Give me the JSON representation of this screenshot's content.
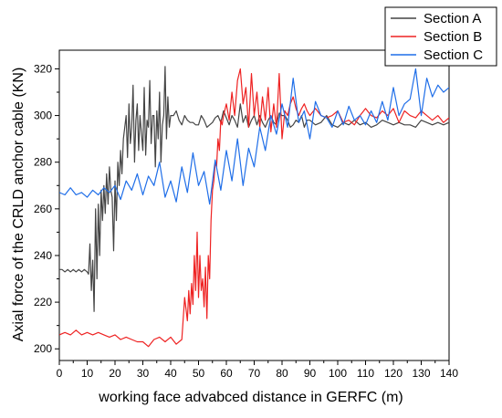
{
  "chart_data": {
    "type": "line",
    "title": "",
    "xlabel": "working face advabced distance in GERFC (m)",
    "ylabel": "Axial force of the CRLD anchor cable (KN)",
    "xlim": [
      0,
      140
    ],
    "ylim": [
      195,
      328
    ],
    "xticks": [
      0,
      10,
      20,
      30,
      40,
      50,
      60,
      70,
      80,
      90,
      100,
      110,
      120,
      130,
      140
    ],
    "yticks": [
      200,
      220,
      240,
      260,
      280,
      300,
      320
    ],
    "grid": false,
    "legend_position": "top-right",
    "series": [
      {
        "name": "Section A",
        "color": "#444444",
        "x": [
          0,
          1,
          2,
          3,
          4,
          5,
          6,
          7,
          8,
          9,
          10,
          10.5,
          11,
          11.5,
          12,
          12.5,
          13,
          13.5,
          14,
          14.5,
          15,
          15.5,
          16,
          16.5,
          17,
          17.5,
          18,
          18.5,
          19,
          19.5,
          20,
          20.5,
          21,
          21.5,
          22,
          22.5,
          23,
          23.5,
          24,
          24.5,
          25,
          25.5,
          26,
          26.5,
          27,
          27.5,
          28,
          28.5,
          29,
          29.5,
          30,
          30.5,
          31,
          31.5,
          32,
          32.5,
          33,
          33.5,
          34,
          34.5,
          35,
          35.5,
          36,
          36.5,
          37,
          37.5,
          38,
          38.5,
          39,
          39.5,
          40,
          41,
          42,
          43,
          44,
          45,
          46,
          47,
          48,
          49,
          50,
          51,
          52,
          53,
          54,
          55,
          56,
          57,
          58,
          59,
          60,
          61,
          62,
          63,
          64,
          65,
          66,
          67,
          68,
          69,
          70,
          71,
          72,
          73,
          74,
          75,
          76,
          77,
          78,
          79,
          80,
          81,
          82,
          83,
          84,
          85,
          86,
          87,
          88,
          89,
          90,
          92,
          94,
          96,
          98,
          100,
          102,
          104,
          106,
          108,
          110,
          112,
          114,
          116,
          118,
          120,
          122,
          124,
          126,
          128,
          130,
          132,
          134,
          136,
          138,
          140
        ],
        "y": [
          234,
          234,
          233,
          234,
          233,
          234,
          233,
          234,
          233,
          234,
          233,
          232,
          245,
          225,
          238,
          216,
          260,
          230,
          262,
          240,
          268,
          255,
          270,
          258,
          275,
          262,
          278,
          268,
          265,
          242,
          272,
          255,
          280,
          270,
          285,
          275,
          290,
          295,
          300,
          282,
          305,
          288,
          295,
          313,
          280,
          298,
          305,
          285,
          300,
          292,
          285,
          312,
          283,
          298,
          295,
          315,
          288,
          300,
          300,
          278,
          302,
          290,
          310,
          280,
          296,
          300,
          321,
          290,
          308,
          295,
          300,
          300,
          302,
          298,
          296,
          300,
          298,
          297,
          297,
          296,
          296,
          300,
          298,
          295,
          296,
          297,
          299,
          300,
          297,
          302,
          299,
          296,
          300,
          298,
          295,
          305,
          297,
          300,
          295,
          298,
          300,
          296,
          300,
          297,
          295,
          298,
          300,
          297,
          296,
          301,
          300,
          300,
          298,
          295,
          296,
          298,
          297,
          300,
          295,
          298,
          298,
          296,
          297,
          300,
          296,
          295,
          297,
          296,
          298,
          296,
          297,
          295,
          296,
          298,
          297,
          296,
          297,
          296,
          296,
          295,
          298,
          297,
          296,
          297,
          296,
          297
        ]
      },
      {
        "name": "Section B",
        "color": "#ee2222",
        "x": [
          0,
          2,
          4,
          6,
          8,
          10,
          12,
          14,
          16,
          18,
          20,
          22,
          24,
          26,
          28,
          30,
          32,
          34,
          36,
          38,
          40,
          42,
          44,
          45,
          46,
          46.5,
          47,
          47.5,
          48,
          48.5,
          49,
          49.5,
          50,
          50.5,
          51,
          51.5,
          52,
          52.5,
          53,
          53.5,
          54,
          54.5,
          55,
          55.5,
          56,
          56.5,
          57,
          57.5,
          58,
          58.5,
          59,
          60,
          61,
          62,
          63,
          64,
          65,
          66,
          67,
          68,
          69,
          70,
          71,
          72,
          73,
          74,
          75,
          76,
          77,
          78,
          79,
          80,
          81,
          82,
          83,
          84,
          85,
          86,
          87,
          88,
          89,
          90,
          92,
          94,
          96,
          98,
          100,
          102,
          104,
          106,
          108,
          110,
          112,
          114,
          116,
          118,
          120,
          122,
          124,
          126,
          128,
          130,
          132,
          134,
          136,
          138,
          140
        ],
        "y": [
          206,
          207,
          206,
          208,
          206,
          207,
          206,
          207,
          206,
          205,
          206,
          204,
          205,
          204,
          203,
          203,
          201,
          204,
          205,
          203,
          205,
          202,
          204,
          222,
          212,
          225,
          215,
          228,
          219,
          240,
          225,
          250,
          222,
          240,
          225,
          230,
          218,
          235,
          213,
          240,
          230,
          255,
          268,
          272,
          280,
          278,
          290,
          285,
          298,
          296,
          300,
          305,
          298,
          310,
          300,
          315,
          320,
          305,
          312,
          295,
          318,
          300,
          310,
          295,
          308,
          298,
          312,
          293,
          305,
          295,
          318,
          290,
          302,
          300,
          305,
          308,
          303,
          300,
          303,
          305,
          302,
          300,
          303,
          300,
          299,
          300,
          302,
          297,
          298,
          296,
          300,
          303,
          300,
          299,
          302,
          300,
          303,
          297,
          302,
          300,
          299,
          302,
          300,
          298,
          300,
          297,
          299
        ]
      },
      {
        "name": "Section C",
        "color": "#1f6ee8",
        "x": [
          0,
          2,
          4,
          6,
          8,
          10,
          12,
          14,
          16,
          18,
          20,
          22,
          24,
          26,
          28,
          30,
          32,
          34,
          36,
          38,
          40,
          42,
          44,
          46,
          48,
          50,
          52,
          54,
          56,
          58,
          60,
          62,
          64,
          66,
          68,
          70,
          72,
          74,
          76,
          78,
          80,
          82,
          84,
          86,
          88,
          90,
          92,
          94,
          96,
          98,
          100,
          102,
          104,
          106,
          108,
          110,
          112,
          114,
          116,
          118,
          120,
          122,
          124,
          126,
          128,
          130,
          132,
          134,
          136,
          138,
          140
        ],
        "y": [
          267,
          266,
          269,
          266,
          267,
          265,
          268,
          266,
          269,
          267,
          270,
          264,
          272,
          268,
          275,
          266,
          274,
          270,
          280,
          265,
          272,
          263,
          278,
          267,
          284,
          270,
          276,
          262,
          281,
          268,
          285,
          272,
          290,
          270,
          286,
          278,
          295,
          285,
          300,
          292,
          305,
          295,
          316,
          297,
          302,
          290,
          306,
          300,
          299,
          295,
          302,
          296,
          304,
          298,
          300,
          296,
          302,
          297,
          306,
          298,
          312,
          300,
          305,
          307,
          320,
          300,
          316,
          308,
          313,
          310,
          312
        ]
      }
    ]
  }
}
